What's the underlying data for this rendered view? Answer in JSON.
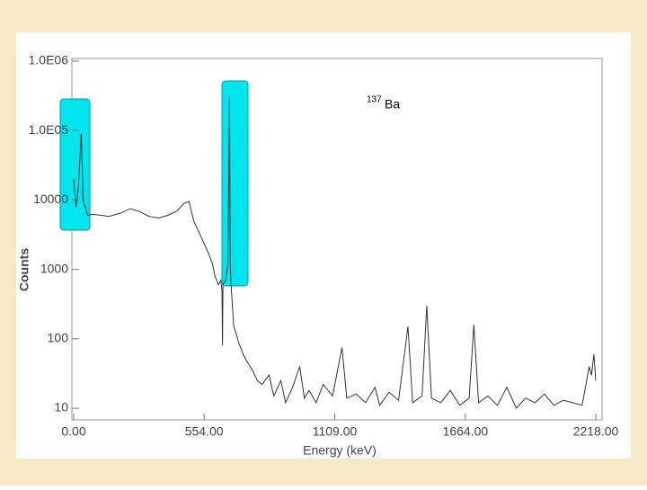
{
  "chart_data": {
    "type": "line",
    "annotation": {
      "superscript": "137",
      "text": "Ba"
    },
    "x_label": "Energy (keV)",
    "y_label": "Counts",
    "ylog": true,
    "xlim": [
      0,
      2218
    ],
    "ylim": [
      7,
      1000000
    ],
    "xticks": [
      {
        "value": 0,
        "label": "0.00"
      },
      {
        "value": 554,
        "label": "554.00"
      },
      {
        "value": 1109,
        "label": "1109.00"
      },
      {
        "value": 1664,
        "label": "1664.00"
      },
      {
        "value": 2218,
        "label": "2218.00"
      }
    ],
    "yticks": [
      10,
      100,
      1000,
      10000,
      {
        "value": 100000,
        "label": "1.0E05"
      },
      {
        "value": 1000000,
        "label": "1.0E06"
      }
    ],
    "series": [
      {
        "color": "#333333",
        "x": [
          0,
          10,
          20,
          32,
          40,
          60,
          80,
          120,
          150,
          200,
          240,
          280,
          320,
          360,
          400,
          440,
          470,
          490,
          510,
          540,
          570,
          590,
          600,
          615,
          625,
          630,
          632,
          634,
          645,
          655,
          662,
          665,
          670,
          680,
          690,
          700,
          720,
          740,
          760,
          780,
          800,
          830,
          850,
          880,
          900,
          930,
          960,
          980,
          1000,
          1030,
          1060,
          1100,
          1140,
          1160,
          1200,
          1240,
          1280,
          1300,
          1340,
          1380,
          1420,
          1440,
          1480,
          1500,
          1520,
          1560,
          1600,
          1640,
          1680,
          1700,
          1720,
          1760,
          1800,
          1840,
          1880,
          1920,
          1960,
          2000,
          2040,
          2080,
          2120,
          2160,
          2190,
          2200,
          2210,
          2218
        ],
        "values": [
          20000,
          8000,
          15000,
          90000,
          10000,
          6000,
          6200,
          6000,
          5800,
          6500,
          7500,
          6800,
          5800,
          5500,
          6000,
          7000,
          9000,
          9500,
          5000,
          3000,
          1800,
          1200,
          800,
          600,
          700,
          500,
          80,
          600,
          700,
          1200,
          300000,
          1200,
          500,
          150,
          120,
          90,
          60,
          45,
          35,
          25,
          22,
          30,
          15,
          25,
          12,
          20,
          40,
          14,
          18,
          12,
          22,
          15,
          75,
          14,
          16,
          12,
          20,
          11,
          17,
          13,
          150,
          12,
          15,
          300,
          14,
          12,
          18,
          11,
          14,
          160,
          12,
          15,
          11,
          20,
          10,
          14,
          12,
          16,
          11,
          13,
          12,
          11,
          40,
          30,
          60,
          25
        ]
      }
    ]
  }
}
